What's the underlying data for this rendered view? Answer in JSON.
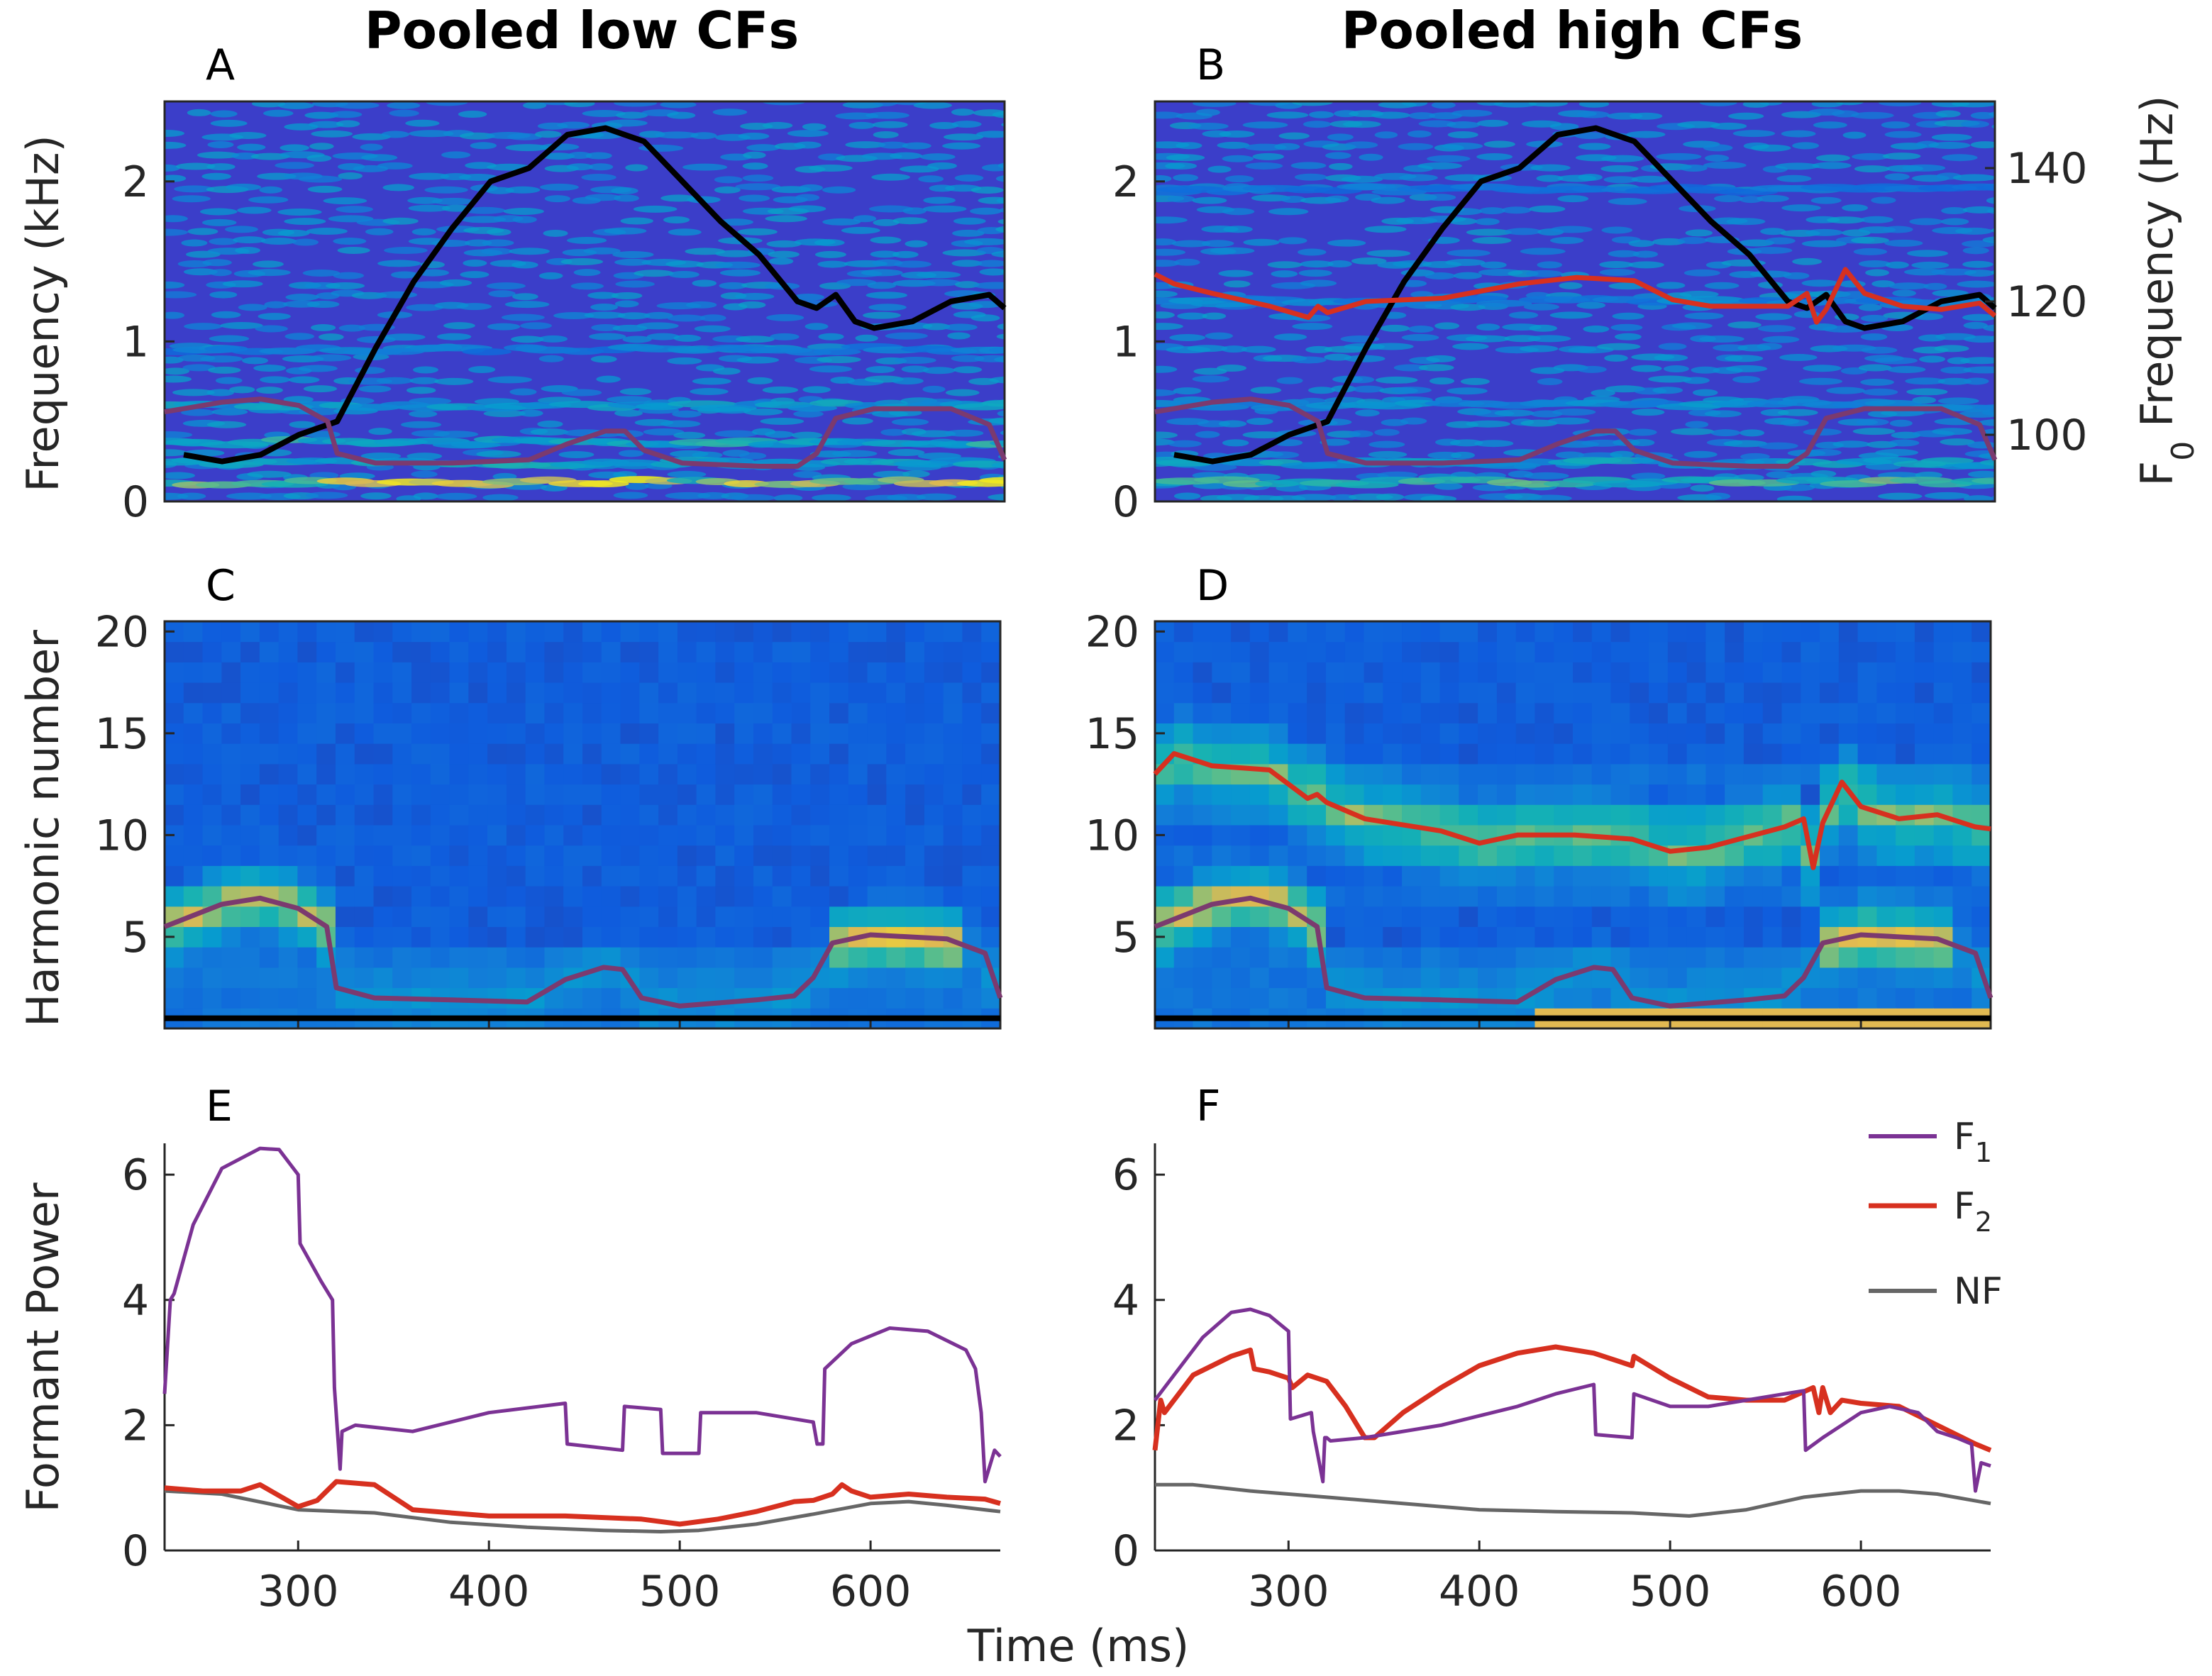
{
  "titles": {
    "left": "Pooled low CFs",
    "right": "Pooled high CFs"
  },
  "panel_labels": [
    "A",
    "B",
    "C",
    "D",
    "E",
    "F"
  ],
  "colors": {
    "f1": "#7b3294",
    "f1_overlay": "#7b3a6f",
    "f2": "#d7301f",
    "nf": "#666666",
    "f0": "#000000"
  },
  "chart_data": [
    {
      "id": "A",
      "type": "heatmap",
      "title": "Pooled low CFs",
      "xlabel": "",
      "ylabel": "Frequency (kHz)",
      "xlim": [
        230,
        668
      ],
      "ylim": [
        0,
        2.5
      ],
      "yticks": [
        0,
        1,
        2
      ],
      "colormap": "parula",
      "bands": [
        {
          "freq": 0.12,
          "intensity": 0.95
        },
        {
          "freq": 0.24,
          "intensity": 0.6
        },
        {
          "freq": 0.37,
          "intensity": 0.65
        },
        {
          "freq": 0.6,
          "intensity": 0.55
        },
        {
          "freq": 0.95,
          "intensity": 0.35
        }
      ],
      "series": [
        {
          "name": "F0",
          "axis": "right",
          "x": [
            240,
            260,
            280,
            300,
            310,
            320,
            340,
            360,
            380,
            400,
            420,
            440,
            460,
            480,
            500,
            520,
            540,
            560,
            570,
            580,
            590,
            600,
            620,
            640,
            660,
            668
          ],
          "y": [
            97,
            96,
            97,
            100,
            101,
            102,
            113,
            123,
            131,
            138,
            140,
            145,
            146,
            144,
            138,
            132,
            127,
            120,
            119,
            121,
            117,
            116,
            117,
            120,
            121,
            119
          ]
        },
        {
          "name": "F1",
          "axis": "left",
          "x": [
            230,
            260,
            280,
            300,
            315,
            320,
            340,
            380,
            420,
            440,
            460,
            470,
            480,
            500,
            540,
            560,
            570,
            580,
            600,
            640,
            660,
            668
          ],
          "y": [
            0.56,
            0.62,
            0.64,
            0.6,
            0.5,
            0.3,
            0.24,
            0.24,
            0.26,
            0.36,
            0.44,
            0.44,
            0.32,
            0.24,
            0.22,
            0.22,
            0.3,
            0.52,
            0.58,
            0.58,
            0.48,
            0.26
          ]
        }
      ]
    },
    {
      "id": "B",
      "type": "heatmap",
      "title": "Pooled high CFs",
      "xlabel": "",
      "ylabel": "",
      "xlim": [
        230,
        668
      ],
      "ylim": [
        0,
        2.5
      ],
      "yticks": [
        0,
        1,
        2
      ],
      "y2label": "F0 Frequency (Hz)",
      "y2lim": [
        90,
        150
      ],
      "y2ticks": [
        100,
        120,
        140
      ],
      "colormap": "parula",
      "bands": [
        {
          "freq": 0.12,
          "intensity": 0.75
        },
        {
          "freq": 0.24,
          "intensity": 0.55
        },
        {
          "freq": 0.6,
          "intensity": 0.45
        },
        {
          "freq": 1.25,
          "intensity": 0.4
        },
        {
          "freq": 1.95,
          "intensity": 0.3
        }
      ],
      "series": [
        {
          "name": "F0",
          "axis": "right",
          "x": [
            240,
            260,
            280,
            300,
            310,
            320,
            340,
            360,
            380,
            400,
            420,
            440,
            460,
            480,
            500,
            520,
            540,
            560,
            570,
            580,
            590,
            600,
            620,
            640,
            660,
            668
          ],
          "y": [
            97,
            96,
            97,
            100,
            101,
            102,
            113,
            123,
            131,
            138,
            140,
            145,
            146,
            144,
            138,
            132,
            127,
            120,
            119,
            121,
            117,
            116,
            117,
            120,
            121,
            119
          ]
        },
        {
          "name": "F1",
          "axis": "left",
          "x": [
            230,
            260,
            280,
            300,
            315,
            320,
            340,
            380,
            420,
            440,
            460,
            470,
            480,
            500,
            540,
            560,
            570,
            580,
            600,
            640,
            660,
            668
          ],
          "y": [
            0.56,
            0.62,
            0.64,
            0.6,
            0.5,
            0.3,
            0.24,
            0.24,
            0.26,
            0.36,
            0.44,
            0.44,
            0.32,
            0.24,
            0.22,
            0.22,
            0.3,
            0.52,
            0.58,
            0.58,
            0.48,
            0.26
          ]
        },
        {
          "name": "F2",
          "axis": "left",
          "x": [
            230,
            240,
            260,
            290,
            310,
            315,
            320,
            340,
            380,
            420,
            450,
            480,
            500,
            520,
            560,
            570,
            575,
            580,
            590,
            600,
            620,
            640,
            660,
            668
          ],
          "y": [
            1.42,
            1.36,
            1.3,
            1.22,
            1.15,
            1.22,
            1.18,
            1.25,
            1.27,
            1.36,
            1.4,
            1.38,
            1.26,
            1.22,
            1.22,
            1.3,
            1.12,
            1.2,
            1.45,
            1.3,
            1.22,
            1.2,
            1.24,
            1.16
          ]
        }
      ]
    },
    {
      "id": "C",
      "type": "heatmap",
      "xlabel": "",
      "ylabel": "Harmonic number",
      "xlim": [
        230,
        668
      ],
      "ylim": [
        0.5,
        20.5
      ],
      "yticks": [
        5,
        10,
        15,
        20
      ],
      "colormap": "parula",
      "series": [
        {
          "name": "F0",
          "x": [
            230,
            668
          ],
          "y": [
            1,
            1
          ]
        },
        {
          "name": "F1",
          "x": [
            230,
            260,
            280,
            300,
            315,
            320,
            340,
            380,
            420,
            440,
            460,
            470,
            480,
            500,
            540,
            560,
            570,
            580,
            600,
            640,
            660,
            668
          ],
          "y": [
            5.5,
            6.6,
            6.9,
            6.4,
            5.5,
            2.5,
            2,
            1.9,
            1.8,
            2.9,
            3.5,
            3.4,
            2,
            1.6,
            1.9,
            2.1,
            3,
            4.7,
            5.1,
            4.9,
            4.2,
            2
          ]
        }
      ]
    },
    {
      "id": "D",
      "type": "heatmap",
      "xlabel": "",
      "ylabel": "",
      "xlim": [
        230,
        668
      ],
      "ylim": [
        0.5,
        20.5
      ],
      "yticks": [
        5,
        10,
        15,
        20
      ],
      "colormap": "parula",
      "series": [
        {
          "name": "F0",
          "x": [
            230,
            668
          ],
          "y": [
            1,
            1
          ]
        },
        {
          "name": "F1",
          "x": [
            230,
            260,
            280,
            300,
            315,
            320,
            340,
            380,
            420,
            440,
            460,
            470,
            480,
            500,
            540,
            560,
            570,
            580,
            600,
            640,
            660,
            668
          ],
          "y": [
            5.5,
            6.6,
            6.9,
            6.4,
            5.5,
            2.5,
            2,
            1.9,
            1.8,
            2.9,
            3.5,
            3.4,
            2,
            1.6,
            1.9,
            2.1,
            3,
            4.7,
            5.1,
            4.9,
            4.2,
            2
          ]
        },
        {
          "name": "F2",
          "x": [
            230,
            240,
            260,
            290,
            310,
            315,
            320,
            340,
            380,
            400,
            420,
            450,
            480,
            500,
            520,
            560,
            570,
            575,
            580,
            590,
            600,
            620,
            640,
            660,
            668
          ],
          "y": [
            13,
            14,
            13.4,
            13.2,
            11.8,
            12,
            11.6,
            10.8,
            10.2,
            9.6,
            10,
            10,
            9.8,
            9.2,
            9.4,
            10.4,
            10.8,
            8.4,
            10.6,
            12.6,
            11.4,
            10.8,
            11,
            10.4,
            10.3
          ]
        }
      ]
    },
    {
      "id": "E",
      "type": "line",
      "xlabel": "Time (ms)",
      "ylabel": "Formant Power",
      "xlim": [
        230,
        668
      ],
      "ylim": [
        0,
        6.5
      ],
      "xticks": [
        300,
        400,
        500,
        600
      ],
      "yticks": [
        0,
        2,
        4,
        6
      ],
      "series": [
        {
          "name": "F1",
          "x": [
            230,
            233,
            235,
            245,
            260,
            280,
            290,
            300,
            301,
            312,
            318,
            319,
            322,
            323,
            330,
            360,
            400,
            440,
            441,
            470,
            471,
            490,
            491,
            510,
            511,
            540,
            570,
            572,
            575,
            576,
            590,
            610,
            630,
            650,
            655,
            658,
            660,
            665,
            668
          ],
          "y": [
            2.5,
            4.0,
            4.1,
            5.2,
            6.1,
            6.42,
            6.4,
            6.0,
            4.9,
            4.3,
            4.0,
            2.6,
            1.3,
            1.9,
            2.0,
            1.9,
            2.2,
            2.35,
            1.7,
            1.6,
            2.3,
            2.25,
            1.55,
            1.55,
            2.2,
            2.2,
            2.05,
            1.7,
            1.7,
            2.9,
            3.3,
            3.55,
            3.5,
            3.2,
            2.9,
            2.2,
            1.1,
            1.6,
            1.5
          ]
        },
        {
          "name": "F2",
          "x": [
            230,
            250,
            270,
            280,
            300,
            310,
            320,
            340,
            360,
            400,
            440,
            480,
            500,
            520,
            540,
            560,
            570,
            580,
            585,
            590,
            600,
            620,
            640,
            660,
            668
          ],
          "y": [
            1.0,
            0.95,
            0.95,
            1.05,
            0.7,
            0.8,
            1.1,
            1.05,
            0.65,
            0.55,
            0.55,
            0.5,
            0.42,
            0.5,
            0.62,
            0.78,
            0.8,
            0.9,
            1.05,
            0.95,
            0.85,
            0.9,
            0.85,
            0.82,
            0.75
          ]
        },
        {
          "name": "NF",
          "x": [
            230,
            260,
            300,
            340,
            380,
            420,
            460,
            490,
            510,
            540,
            570,
            600,
            620,
            640,
            668
          ],
          "y": [
            0.95,
            0.9,
            0.65,
            0.6,
            0.45,
            0.37,
            0.32,
            0.3,
            0.32,
            0.42,
            0.58,
            0.75,
            0.78,
            0.72,
            0.62
          ]
        }
      ]
    },
    {
      "id": "F",
      "type": "line",
      "xlabel": "",
      "ylabel": "",
      "xlim": [
        230,
        668
      ],
      "ylim": [
        0,
        6.5
      ],
      "xticks": [
        300,
        400,
        500,
        600
      ],
      "yticks": [
        0,
        2,
        4,
        6
      ],
      "legend": {
        "position": "top-right",
        "entries": [
          {
            "label": "F",
            "sub": "1"
          },
          {
            "label": "F",
            "sub": "2"
          },
          {
            "label": "NF",
            "sub": ""
          }
        ]
      },
      "series": [
        {
          "name": "F1",
          "x": [
            230,
            240,
            255,
            270,
            280,
            290,
            300,
            301,
            312,
            313,
            318,
            319,
            320,
            322,
            340,
            380,
            420,
            440,
            460,
            461,
            480,
            481,
            500,
            520,
            540,
            560,
            570,
            571,
            580,
            600,
            615,
            630,
            640,
            650,
            658,
            660,
            663,
            668
          ],
          "y": [
            2.4,
            2.8,
            3.4,
            3.8,
            3.85,
            3.75,
            3.5,
            2.1,
            2.2,
            1.9,
            1.1,
            1.8,
            1.8,
            1.75,
            1.8,
            2.0,
            2.3,
            2.5,
            2.65,
            1.85,
            1.8,
            2.5,
            2.3,
            2.3,
            2.4,
            2.5,
            2.55,
            1.6,
            1.8,
            2.2,
            2.3,
            2.2,
            1.9,
            1.8,
            1.7,
            0.95,
            1.4,
            1.35
          ]
        },
        {
          "name": "F2",
          "x": [
            230,
            233,
            235,
            250,
            270,
            280,
            282,
            290,
            300,
            302,
            310,
            320,
            330,
            340,
            345,
            360,
            380,
            400,
            420,
            440,
            460,
            480,
            481,
            500,
            520,
            540,
            560,
            575,
            578,
            580,
            584,
            590,
            600,
            620,
            640,
            660,
            668
          ],
          "y": [
            1.6,
            2.4,
            2.2,
            2.8,
            3.1,
            3.2,
            2.9,
            2.85,
            2.75,
            2.6,
            2.8,
            2.7,
            2.3,
            1.8,
            1.8,
            2.2,
            2.6,
            2.95,
            3.15,
            3.25,
            3.15,
            2.95,
            3.1,
            2.75,
            2.45,
            2.4,
            2.4,
            2.6,
            2.2,
            2.6,
            2.2,
            2.4,
            2.35,
            2.3,
            2.0,
            1.7,
            1.6
          ]
        },
        {
          "name": "NF",
          "x": [
            230,
            250,
            280,
            320,
            360,
            400,
            440,
            480,
            510,
            540,
            570,
            600,
            620,
            640,
            668
          ],
          "y": [
            1.05,
            1.05,
            0.95,
            0.85,
            0.75,
            0.65,
            0.62,
            0.6,
            0.55,
            0.65,
            0.85,
            0.95,
            0.95,
            0.9,
            0.75
          ]
        }
      ]
    }
  ]
}
